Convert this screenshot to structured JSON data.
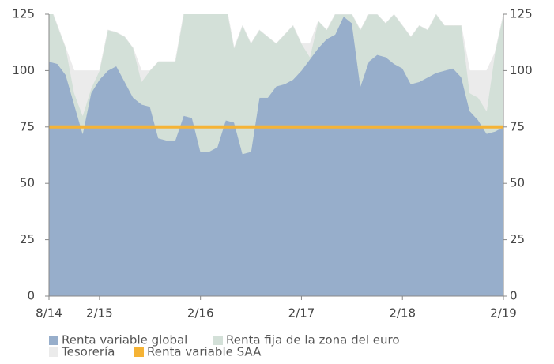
{
  "chart_data": {
    "type": "stacked_area",
    "x": [
      "2014-08",
      "2014-09",
      "2014-10",
      "2014-11",
      "2014-12",
      "2015-01",
      "2015-02",
      "2015-03",
      "2015-04",
      "2015-05",
      "2015-06",
      "2015-07",
      "2015-08",
      "2015-09",
      "2015-10",
      "2015-11",
      "2015-12",
      "2016-01",
      "2016-02",
      "2016-03",
      "2016-04",
      "2016-05",
      "2016-06",
      "2016-07",
      "2016-08",
      "2016-09",
      "2016-10",
      "2016-11",
      "2016-12",
      "2017-01",
      "2017-02",
      "2017-03",
      "2017-04",
      "2017-05",
      "2017-06",
      "2017-07",
      "2017-08",
      "2017-09",
      "2017-10",
      "2017-11",
      "2017-12",
      "2018-01",
      "2018-02",
      "2018-03",
      "2018-04",
      "2018-05",
      "2018-06",
      "2018-07",
      "2018-08",
      "2018-09",
      "2018-10",
      "2018-11",
      "2018-12",
      "2019-01",
      "2019-02"
    ],
    "series": [
      {
        "name": "Renta variable global",
        "color": "#97aecb",
        "values": [
          104,
          103,
          98,
          85,
          72,
          90,
          96,
          100,
          102,
          95,
          88,
          85,
          84,
          70,
          69,
          69,
          80,
          79,
          64,
          64,
          66,
          78,
          77,
          63,
          64,
          88,
          88,
          93,
          94,
          96,
          100,
          105,
          110,
          114,
          116,
          124,
          121,
          93,
          104,
          107,
          106,
          103,
          101,
          94,
          95,
          97,
          99,
          100,
          101,
          97,
          82,
          78,
          72,
          73,
          75
        ]
      },
      {
        "name": "Renta fija de la zona del euro",
        "color": "#d3e0d8",
        "values": [
          26,
          17,
          12,
          5,
          8,
          2,
          4,
          18,
          15,
          20,
          22,
          10,
          16,
          34,
          35,
          35,
          45,
          51,
          66,
          66,
          64,
          52,
          33,
          57,
          48,
          30,
          27,
          19,
          22,
          24,
          12,
          1,
          12,
          4,
          9,
          1,
          4,
          25,
          21,
          18,
          15,
          22,
          19,
          21,
          25,
          21,
          26,
          20,
          19,
          23,
          8,
          10,
          10,
          35,
          50
        ]
      },
      {
        "name": "Tesorería",
        "color": "#ebebeb",
        "values": [
          0,
          0,
          0,
          10,
          20,
          8,
          0,
          0,
          0,
          0,
          0,
          5,
          0,
          0,
          0,
          0,
          0,
          0,
          0,
          0,
          0,
          0,
          0,
          0,
          0,
          0,
          0,
          0,
          0,
          0,
          0,
          6,
          0,
          0,
          0,
          0,
          0,
          0,
          0,
          0,
          0,
          0,
          0,
          0,
          0,
          0,
          0,
          0,
          0,
          0,
          10,
          12,
          18,
          0,
          0
        ]
      }
    ],
    "reference_lines": [
      {
        "name": "Renta variable SAA",
        "color": "#f5b335",
        "value": 75
      }
    ],
    "xticks": [
      {
        "value": "2014-08",
        "label": "8/14"
      },
      {
        "value": "2015-02",
        "label": "2/15"
      },
      {
        "value": "2016-02",
        "label": "2/16"
      },
      {
        "value": "2017-02",
        "label": "2/17"
      },
      {
        "value": "2018-02",
        "label": "2/18"
      },
      {
        "value": "2019-02",
        "label": "2/19"
      }
    ],
    "xlim": [
      "2014-08",
      "2019-02"
    ],
    "ylim": [
      0,
      125
    ],
    "yticks": [
      0,
      25,
      50,
      75,
      100,
      125
    ],
    "y2lim": [
      0,
      125
    ],
    "y2ticks": [
      0,
      25,
      50,
      75,
      100,
      125
    ]
  }
}
